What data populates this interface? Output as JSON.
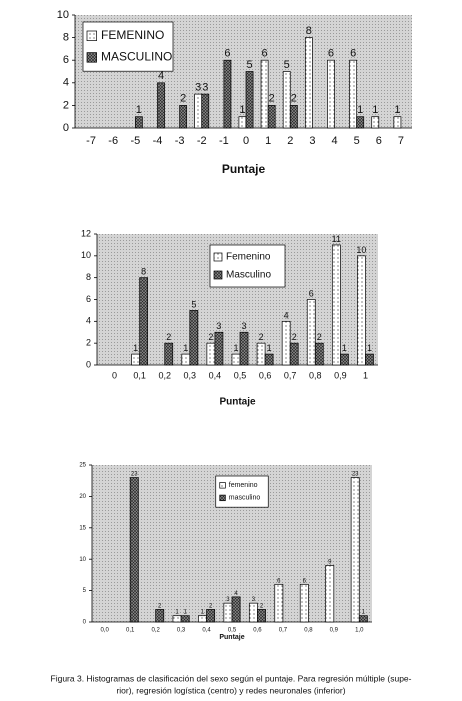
{
  "chart_data": [
    {
      "type": "bar",
      "xlabel": "Puntaje",
      "legend": "upper left",
      "grid": false,
      "categories": [
        "-7",
        "-6",
        "-5",
        "-4",
        "-3",
        "-2",
        "-1",
        "0",
        "1",
        "2",
        "3",
        "4",
        "5",
        "6",
        "7"
      ],
      "ylim": [
        0,
        10
      ],
      "yticks": [
        0,
        2,
        4,
        6,
        8,
        10
      ],
      "series": [
        {
          "name": "FEMENINO",
          "color": "#ffffff",
          "pattern": "dots",
          "values": [
            0,
            0,
            0,
            0,
            0,
            3,
            0,
            1,
            6,
            5,
            8,
            6,
            6,
            1,
            1
          ]
        },
        {
          "name": "MASCULINO",
          "color": "#8a8a8a",
          "pattern": "crosshatch",
          "values": [
            0,
            0,
            1,
            4,
            2,
            3,
            6,
            5,
            2,
            2,
            0,
            0,
            1,
            0,
            0
          ]
        }
      ]
    },
    {
      "type": "bar",
      "xlabel": "Puntaje",
      "legend": "upper center",
      "grid": false,
      "categories": [
        "0",
        "0,1",
        "0,2",
        "0,3",
        "0,4",
        "0,5",
        "0,6",
        "0,7",
        "0,8",
        "0,9",
        "1"
      ],
      "ylim": [
        0,
        12
      ],
      "yticks": [
        0,
        2,
        4,
        6,
        8,
        10,
        12
      ],
      "series": [
        {
          "name": "Femenino",
          "color": "#ffffff",
          "pattern": "dots",
          "values": [
            0,
            1,
            0,
            1,
            2,
            1,
            2,
            4,
            6,
            11,
            10
          ]
        },
        {
          "name": "Masculino",
          "color": "#8a8a8a",
          "pattern": "crosshatch",
          "values": [
            0,
            8,
            2,
            5,
            3,
            3,
            1,
            2,
            2,
            1,
            1
          ]
        }
      ]
    },
    {
      "type": "bar",
      "xlabel": "Puntaje",
      "legend": "upper center",
      "grid": false,
      "categories": [
        "0,0",
        "0,1",
        "0,2",
        "0,3",
        "0,4",
        "0,5",
        "0,6",
        "0,7",
        "0,8",
        "0,9",
        "1,0"
      ],
      "ylim": [
        0,
        25
      ],
      "yticks": [
        0,
        5,
        10,
        15,
        20,
        25
      ],
      "series": [
        {
          "name": "femenino",
          "color": "#ffffff",
          "pattern": "dots",
          "values": [
            0,
            0,
            0,
            1,
            1,
            3,
            3,
            6,
            6,
            9,
            23
          ]
        },
        {
          "name": "masculino",
          "color": "#8a8a8a",
          "pattern": "crosshatch",
          "values": [
            0,
            23,
            2,
            1,
            2,
            4,
            2,
            0,
            0,
            0,
            1
          ]
        }
      ]
    }
  ],
  "caption": [
    "Figura 3. Histogramas de clasificación del sexo según el puntaje. Para regresión múltiple (supe-",
    "rior), regresión logística (centro) y redes neuronales (inferior)"
  ]
}
